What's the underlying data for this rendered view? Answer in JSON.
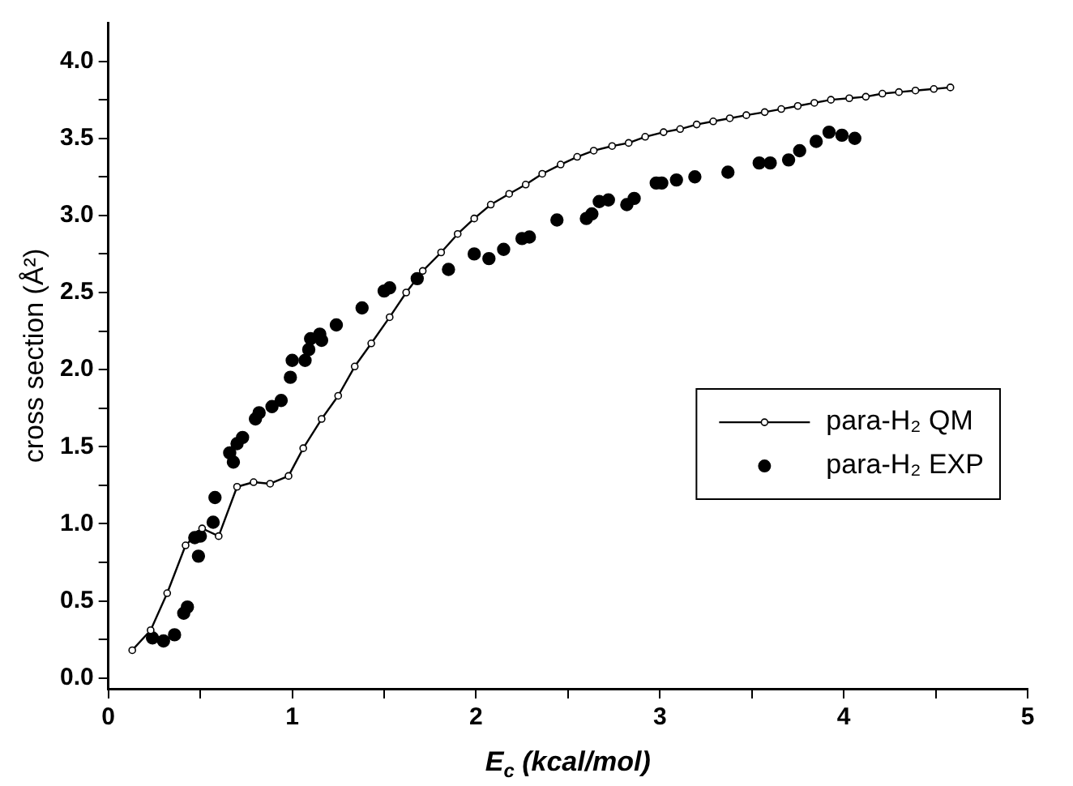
{
  "chart_data": {
    "type": "line",
    "xlabel": "E$_{c}$ (kcal/mol)",
    "ylabel": "cross section (Å²)",
    "xlim": [
      0,
      5
    ],
    "xticks": [
      0,
      {
        "value": 0.5,
        "label": null
      },
      1,
      {
        "value": 1.5,
        "label": null
      },
      2,
      {
        "value": 2.5,
        "label": null
      },
      3,
      {
        "value": 3.5,
        "label": null
      },
      4,
      {
        "value": 4.5,
        "label": null
      },
      5
    ],
    "ylim": [
      -0.07,
      4.25
    ],
    "yticks": [
      {
        "value": 0,
        "label": "0.0"
      },
      {
        "value": 0.25,
        "label": null
      },
      {
        "value": 0.5,
        "label": "0.5"
      },
      {
        "value": 0.75,
        "label": null
      },
      {
        "value": 1,
        "label": "1.0"
      },
      {
        "value": 1.25,
        "label": null
      },
      {
        "value": 1.5,
        "label": "1.5"
      },
      {
        "value": 1.75,
        "label": null
      },
      {
        "value": 2,
        "label": "2.0"
      },
      {
        "value": 2.25,
        "label": null
      },
      {
        "value": 2.5,
        "label": "2.5"
      },
      {
        "value": 2.75,
        "label": null
      },
      {
        "value": 3,
        "label": "3.0"
      },
      {
        "value": 3.25,
        "label": null
      },
      {
        "value": 3.5,
        "label": "3.5"
      },
      {
        "value": 3.75,
        "label": null
      },
      {
        "value": 4,
        "label": "4.0"
      }
    ],
    "grid": false,
    "legend": "right",
    "marker": "circle",
    "series": [
      {
        "name": "para-H₂ QM",
        "type": "line",
        "color": "#000000",
        "x": [
          0.13,
          0.23,
          0.32,
          0.42,
          0.51,
          0.6,
          0.7,
          0.79,
          0.88,
          0.98,
          1.06,
          1.16,
          1.25,
          1.34,
          1.43,
          1.53,
          1.62,
          1.71,
          1.81,
          1.9,
          1.99,
          2.08,
          2.18,
          2.27,
          2.36,
          2.46,
          2.55,
          2.64,
          2.74,
          2.83,
          2.92,
          3.02,
          3.11,
          3.2,
          3.29,
          3.38,
          3.47,
          3.57,
          3.66,
          3.75,
          3.84,
          3.93,
          4.03,
          4.12,
          4.21,
          4.3,
          4.39,
          4.49,
          4.58
        ],
        "values": [
          0.18,
          0.31,
          0.55,
          0.86,
          0.97,
          0.92,
          1.24,
          1.27,
          1.26,
          1.31,
          1.49,
          1.68,
          1.83,
          2.02,
          2.17,
          2.34,
          2.5,
          2.64,
          2.76,
          2.88,
          2.98,
          3.07,
          3.14,
          3.2,
          3.27,
          3.33,
          3.38,
          3.42,
          3.45,
          3.47,
          3.51,
          3.54,
          3.56,
          3.59,
          3.61,
          3.63,
          3.65,
          3.67,
          3.69,
          3.71,
          3.73,
          3.75,
          3.76,
          3.77,
          3.79,
          3.8,
          3.81,
          3.82,
          3.83
        ]
      },
      {
        "name": "para-H₂ EXP",
        "type": "scatter",
        "color": "#000000",
        "x": [
          0.24,
          0.3,
          0.36,
          0.41,
          0.43,
          0.47,
          0.49,
          0.5,
          0.57,
          0.58,
          0.66,
          0.68,
          0.7,
          0.73,
          0.8,
          0.82,
          0.89,
          0.94,
          0.99,
          1.0,
          1.07,
          1.09,
          1.1,
          1.15,
          1.16,
          1.24,
          1.38,
          1.5,
          1.53,
          1.68,
          1.85,
          1.99,
          2.07,
          2.15,
          2.25,
          2.29,
          2.44,
          2.6,
          2.63,
          2.67,
          2.72,
          2.82,
          2.86,
          2.98,
          3.01,
          3.09,
          3.19,
          3.37,
          3.54,
          3.6,
          3.7,
          3.76,
          3.85,
          3.92,
          3.99,
          4.06
        ],
        "values": [
          0.26,
          0.24,
          0.28,
          0.42,
          0.46,
          0.91,
          0.79,
          0.92,
          1.01,
          1.17,
          1.46,
          1.4,
          1.52,
          1.56,
          1.68,
          1.72,
          1.76,
          1.8,
          1.95,
          2.06,
          2.06,
          2.13,
          2.2,
          2.23,
          2.19,
          2.29,
          2.4,
          2.51,
          2.53,
          2.59,
          2.65,
          2.75,
          2.72,
          2.78,
          2.85,
          2.86,
          2.97,
          2.98,
          3.01,
          3.09,
          3.1,
          3.07,
          3.11,
          3.21,
          3.21,
          3.23,
          3.25,
          3.28,
          3.34,
          3.34,
          3.36,
          3.42,
          3.48,
          3.54,
          3.52,
          3.5
        ]
      }
    ]
  }
}
